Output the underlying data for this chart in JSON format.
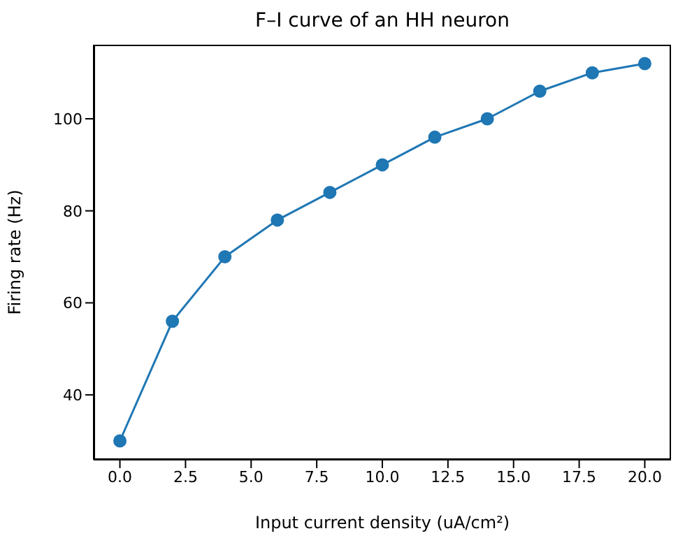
{
  "chart_data": {
    "type": "line",
    "title": "F–I curve of an HH neuron",
    "xlabel": "Input current density (uA/cm²)",
    "ylabel": "Firing rate (Hz)",
    "x": [
      0,
      2,
      4,
      6,
      8,
      10,
      12,
      14,
      16,
      18,
      20
    ],
    "series": [
      {
        "color": "#1f77b4",
        "values": [
          30,
          56,
          70,
          78,
          84,
          90,
          96,
          100,
          106,
          110,
          112
        ]
      }
    ],
    "xlim": [
      -1,
      21
    ],
    "ylim": [
      25.9,
      116.1
    ],
    "xticks": [
      {
        "value": 0,
        "label": "0.0"
      },
      {
        "value": 2.5,
        "label": "2.5"
      },
      {
        "value": 5,
        "label": "5.0"
      },
      {
        "value": 7.5,
        "label": "7.5"
      },
      {
        "value": 10,
        "label": "10.0"
      },
      {
        "value": 12.5,
        "label": "12.5"
      },
      {
        "value": 15,
        "label": "15.0"
      },
      {
        "value": 17.5,
        "label": "17.5"
      },
      {
        "value": 20,
        "label": "20.0"
      }
    ],
    "yticks": [
      40,
      60,
      80,
      100
    ],
    "marker": "circle",
    "line_style": "solid",
    "grid": false,
    "legend": false
  }
}
